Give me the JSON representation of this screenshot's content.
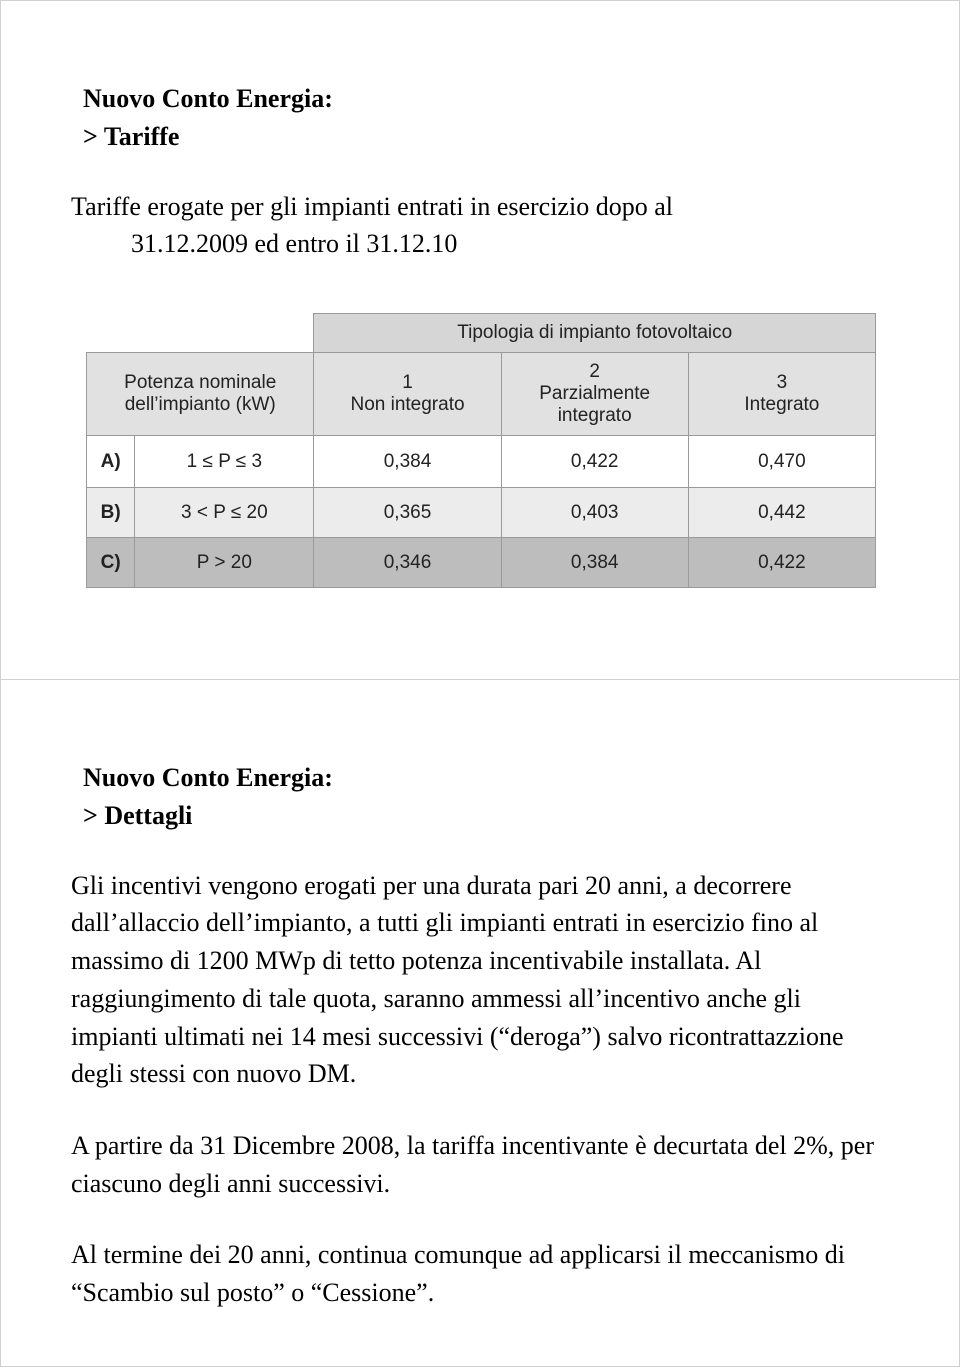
{
  "slide1": {
    "title": "Nuovo Conto Energia:",
    "subtitle": "> Tariffe",
    "intro_line1": "Tariffe erogate per gli impianti entrati in esercizio dopo al",
    "intro_line2": "31.12.2009 ed entro il 31.12.10",
    "table": {
      "header_span": "Tipologia di impianto fotovoltaico",
      "potenza_label_l1": "Potenza nominale",
      "potenza_label_l2": "dell’impianto (kW)",
      "cols": [
        {
          "num": "1",
          "label": "Non integrato"
        },
        {
          "num": "2",
          "label_l1": "Parzialmente",
          "label_l2": "integrato"
        },
        {
          "num": "3",
          "label": "Integrato"
        }
      ],
      "rows": [
        {
          "id": "A)",
          "range": "1 ≤ P ≤ 3",
          "v1": "0,384",
          "v2": "0,422",
          "v3": "0,470",
          "bg": "#ffffff"
        },
        {
          "id": "B)",
          "range": "3 < P ≤ 20",
          "v1": "0,365",
          "v2": "0,403",
          "v3": "0,442",
          "bg": "#ececec"
        },
        {
          "id": "C)",
          "range": "P > 20",
          "v1": "0,346",
          "v2": "0,384",
          "v3": "0,422",
          "bg": "#bdbdbd"
        }
      ],
      "colors": {
        "border": "#9a9a9a",
        "header_top_bg": "#d6d6d6",
        "header_sub_bg": "#e1e1e1"
      }
    }
  },
  "slide2": {
    "title": "Nuovo Conto Energia:",
    "subtitle": "> Dettagli",
    "para1": "Gli incentivi vengono erogati per una durata pari 20 anni, a decorrere dall’allaccio dell’impianto, a tutti gli impianti entrati in esercizio fino al massimo di 1200 MWp di tetto potenza incentivabile installata. Al raggiungimento di tale quota, saranno ammessi all’incentivo anche gli impianti ultimati nei 14 mesi successivi (“deroga”) salvo ricontrattazzione degli stessi con nuovo DM.",
    "para2": "A partire da 31 Dicembre 2008, la tariffa incentivante è decurtata del 2%, per ciascuno degli anni successivi.",
    "para3": "Al termine dei 20 anni, continua comunque ad applicarsi il meccanismo di “Scambio sul posto” o “Cessione”."
  }
}
